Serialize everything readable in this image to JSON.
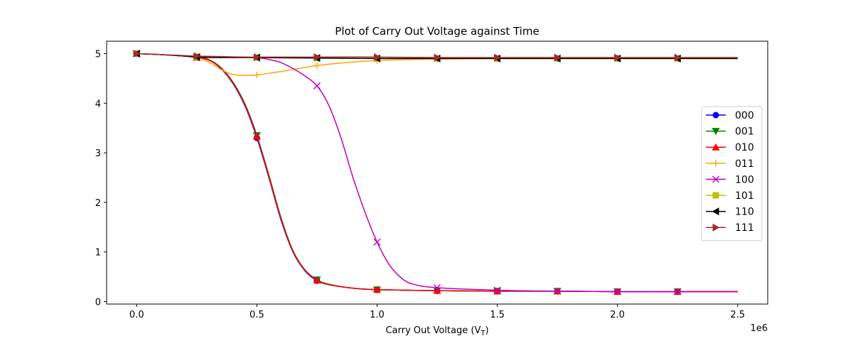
{
  "chart_data": {
    "type": "line",
    "title": "Plot of Carry Out Voltage against Time",
    "xlabel": "Carry Out Voltage (V_T)",
    "ylabel": "",
    "x_offset_label": "1e6",
    "xlim": [
      -0.125,
      2.625
    ],
    "ylim": [
      -0.05,
      5.25
    ],
    "x_ticks": [
      0.0,
      0.5,
      1.0,
      1.5,
      2.0,
      2.5
    ],
    "x_tick_labels": [
      "0.0",
      "0.5",
      "1.0",
      "1.5",
      "2.0",
      "2.5"
    ],
    "y_ticks": [
      0,
      1,
      2,
      3,
      4,
      5
    ],
    "y_tick_labels": [
      "0",
      "1",
      "2",
      "3",
      "4",
      "5"
    ],
    "grid": false,
    "legend_position": "center-right",
    "marker_x": [
      0.0,
      0.25,
      0.5,
      0.75,
      1.0,
      1.25,
      1.5,
      1.75,
      2.0,
      2.25
    ],
    "series": [
      {
        "name": "000",
        "color": "#0000ff",
        "marker": "circle",
        "x": [
          0.0,
          0.1,
          0.2,
          0.25,
          0.3,
          0.35,
          0.4,
          0.45,
          0.5,
          0.55,
          0.6,
          0.65,
          0.7,
          0.75,
          0.8,
          0.9,
          1.0,
          1.25,
          1.5,
          1.75,
          2.0,
          2.25,
          2.5
        ],
        "y": [
          5.0,
          4.98,
          4.95,
          4.92,
          4.87,
          4.7,
          4.4,
          3.95,
          3.3,
          2.5,
          1.65,
          1.0,
          0.62,
          0.42,
          0.34,
          0.27,
          0.24,
          0.22,
          0.21,
          0.21,
          0.2,
          0.2,
          0.2
        ]
      },
      {
        "name": "001",
        "color": "#008000",
        "marker": "triangle-down",
        "x": [
          0.0,
          0.1,
          0.2,
          0.25,
          0.3,
          0.35,
          0.4,
          0.45,
          0.5,
          0.55,
          0.6,
          0.65,
          0.7,
          0.75,
          0.8,
          0.9,
          1.0,
          1.25,
          1.5,
          1.75,
          2.0,
          2.25,
          2.5
        ],
        "y": [
          5.0,
          4.98,
          4.95,
          4.93,
          4.88,
          4.72,
          4.43,
          3.99,
          3.35,
          2.55,
          1.7,
          1.03,
          0.64,
          0.44,
          0.35,
          0.27,
          0.24,
          0.22,
          0.21,
          0.21,
          0.2,
          0.2,
          0.2
        ]
      },
      {
        "name": "010",
        "color": "#ff0000",
        "marker": "triangle-up",
        "x": [
          0.0,
          0.1,
          0.2,
          0.25,
          0.3,
          0.35,
          0.4,
          0.45,
          0.5,
          0.55,
          0.6,
          0.65,
          0.7,
          0.75,
          0.8,
          0.9,
          1.0,
          1.25,
          1.5,
          1.75,
          2.0,
          2.25,
          2.5
        ],
        "y": [
          5.0,
          4.98,
          4.95,
          4.92,
          4.87,
          4.71,
          4.41,
          3.97,
          3.33,
          2.52,
          1.67,
          1.01,
          0.63,
          0.43,
          0.34,
          0.27,
          0.24,
          0.22,
          0.21,
          0.21,
          0.2,
          0.2,
          0.2
        ]
      },
      {
        "name": "011",
        "color": "#ffa500",
        "marker": "plus",
        "x": [
          0.0,
          0.1,
          0.2,
          0.25,
          0.3,
          0.35,
          0.4,
          0.45,
          0.5,
          0.6,
          0.7,
          0.75,
          0.85,
          1.0,
          1.25,
          1.5,
          1.75,
          2.0,
          2.25,
          2.5
        ],
        "y": [
          5.0,
          4.98,
          4.95,
          4.92,
          4.83,
          4.68,
          4.58,
          4.56,
          4.57,
          4.64,
          4.72,
          4.76,
          4.81,
          4.86,
          4.89,
          4.9,
          4.9,
          4.9,
          4.9,
          4.9
        ]
      },
      {
        "name": "100",
        "color": "#bf00bf",
        "marker": "x",
        "x": [
          0.0,
          0.1,
          0.2,
          0.25,
          0.3,
          0.4,
          0.5,
          0.55,
          0.6,
          0.65,
          0.7,
          0.75,
          0.8,
          0.85,
          0.9,
          0.95,
          1.0,
          1.05,
          1.1,
          1.15,
          1.25,
          1.5,
          1.75,
          2.0,
          2.25,
          2.5
        ],
        "y": [
          5.0,
          4.98,
          4.95,
          4.93,
          4.93,
          4.93,
          4.92,
          4.88,
          4.82,
          4.7,
          4.55,
          4.35,
          3.95,
          3.3,
          2.5,
          1.8,
          1.2,
          0.75,
          0.48,
          0.35,
          0.28,
          0.23,
          0.21,
          0.2,
          0.2,
          0.2
        ]
      },
      {
        "name": "101",
        "color": "#bfbf00",
        "marker": "square",
        "x": [
          0.0,
          0.1,
          0.2,
          0.25,
          0.35,
          0.5,
          0.75,
          1.0,
          1.25,
          1.5,
          1.75,
          2.0,
          2.25,
          2.5
        ],
        "y": [
          5.0,
          4.98,
          4.95,
          4.93,
          4.92,
          4.92,
          4.91,
          4.9,
          4.9,
          4.9,
          4.9,
          4.9,
          4.9,
          4.9
        ]
      },
      {
        "name": "110",
        "color": "#000000",
        "marker": "triangle-left",
        "x": [
          0.0,
          0.1,
          0.2,
          0.25,
          0.35,
          0.5,
          0.75,
          1.0,
          1.25,
          1.5,
          1.75,
          2.0,
          2.25,
          2.5
        ],
        "y": [
          5.0,
          4.98,
          4.95,
          4.93,
          4.92,
          4.92,
          4.91,
          4.9,
          4.9,
          4.9,
          4.9,
          4.9,
          4.9,
          4.9
        ]
      },
      {
        "name": "111",
        "color": "#a52a2a",
        "marker": "triangle-right",
        "x": [
          0.0,
          0.1,
          0.2,
          0.25,
          0.35,
          0.5,
          0.75,
          1.0,
          1.25,
          1.5,
          1.75,
          2.0,
          2.25,
          2.5
        ],
        "y": [
          5.0,
          4.98,
          4.96,
          4.95,
          4.94,
          4.93,
          4.93,
          4.93,
          4.92,
          4.92,
          4.92,
          4.92,
          4.92,
          4.92
        ]
      }
    ]
  }
}
